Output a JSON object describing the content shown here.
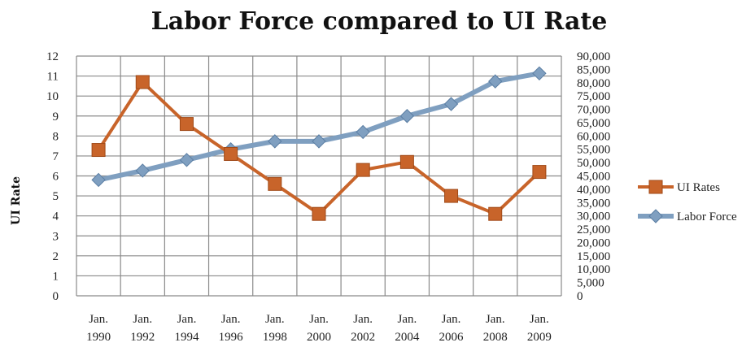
{
  "chart_data": {
    "type": "line",
    "title": "Labor Force compared to UI Rate",
    "ylabel": "UI Rate",
    "categories": [
      [
        "Jan.",
        "1990"
      ],
      [
        "Jan.",
        "1992"
      ],
      [
        "Jan.",
        "1994"
      ],
      [
        "Jan.",
        "1996"
      ],
      [
        "Jan.",
        "1998"
      ],
      [
        "Jan.",
        "2000"
      ],
      [
        "Jan.",
        "2002"
      ],
      [
        "Jan.",
        "2004"
      ],
      [
        "Jan.",
        "2006"
      ],
      [
        "Jan.",
        "2008"
      ],
      [
        "Jan.",
        "2009"
      ]
    ],
    "y_left": {
      "min": 0,
      "max": 12,
      "step": 1,
      "ticks": [
        "0",
        "1",
        "2",
        "3",
        "4",
        "5",
        "6",
        "7",
        "8",
        "9",
        "10",
        "11",
        "12"
      ]
    },
    "y_right": {
      "min": 0,
      "max": 90000,
      "step": 5000,
      "ticks": [
        "0",
        "5,000",
        "10,000",
        "15,000",
        "20,000",
        "25,000",
        "30,000",
        "35,000",
        "40,000",
        "45,000",
        "50,000",
        "55,000",
        "60,000",
        "65,000",
        "70,000",
        "75,000",
        "80,000",
        "85,000",
        "90,000"
      ]
    },
    "grid": true,
    "legend_position": "right",
    "series": [
      {
        "name": "UI Rates",
        "axis": "left",
        "marker": "square",
        "color": "#c8642a",
        "values": [
          7.3,
          10.7,
          8.6,
          7.1,
          5.6,
          4.1,
          6.3,
          6.7,
          5.0,
          4.1,
          6.2
        ]
      },
      {
        "name": "Labor Force",
        "axis": "right",
        "marker": "diamond",
        "color": "#7f9fc0",
        "values": [
          43500,
          47000,
          51000,
          55000,
          58000,
          58000,
          61500,
          67500,
          72000,
          80500,
          83500
        ]
      }
    ]
  }
}
